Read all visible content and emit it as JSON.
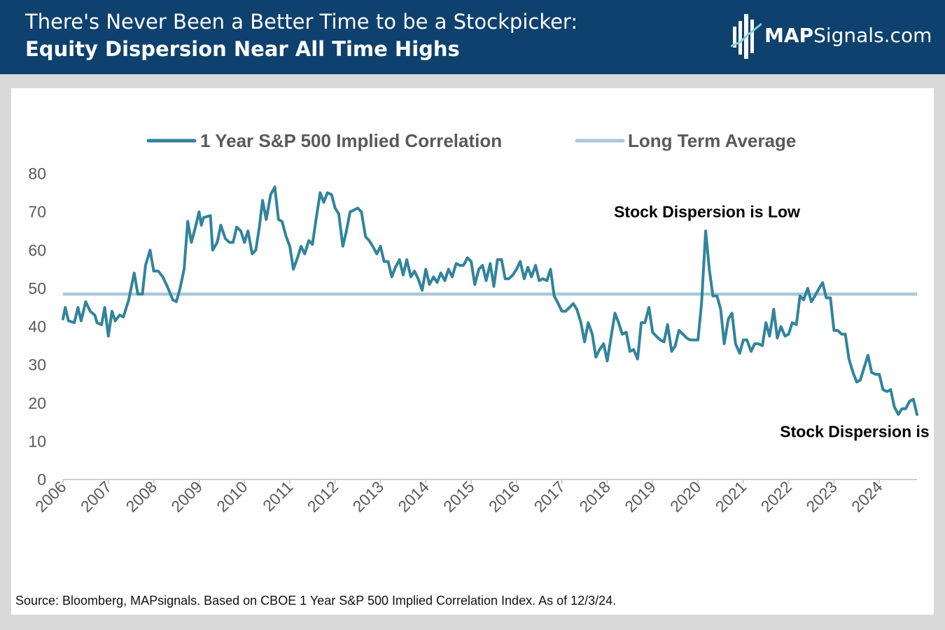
{
  "header": {
    "title_line1": "There's Never Been a Better Time to be a Stockpicker:",
    "title_line2": "Equity Dispersion Near All Time Highs",
    "logo_bold": "MAP",
    "logo_rest": "Signals.com"
  },
  "source": "Source: Bloomberg, MAPsignals. Based on CBOE 1 Year S&P 500 Implied Correlation Index. As of 12/3/24.",
  "colors": {
    "header_bg": "#0e416d",
    "series": "#31849b",
    "average": "#a9c9d6",
    "axis_text": "#595959",
    "annotation": "#000000"
  },
  "chart_data": {
    "type": "line",
    "title": "",
    "xlabel": "",
    "ylabel": "",
    "ylim": [
      0,
      80
    ],
    "yticks": [
      0,
      10,
      20,
      30,
      40,
      50,
      60,
      70,
      80
    ],
    "xlim": [
      2006,
      2024.83
    ],
    "xticks": [
      "2006",
      "2007",
      "2008",
      "2009",
      "2010",
      "2011",
      "2012",
      "2013",
      "2014",
      "2015",
      "2016",
      "2017",
      "2018",
      "2019",
      "2020",
      "2021",
      "2022",
      "2023",
      "2024"
    ],
    "legend": [
      "1 Year S&P 500 Implied Correlation",
      "Long Term Average"
    ],
    "legend_position": "top-center",
    "series": [
      {
        "name": "1 Year S&P 500 Implied Correlation",
        "points": [
          [
            2006.0,
            42
          ],
          [
            2006.05,
            45
          ],
          [
            2006.12,
            41.5
          ],
          [
            2006.25,
            41
          ],
          [
            2006.33,
            45
          ],
          [
            2006.4,
            41.5
          ],
          [
            2006.5,
            46.5
          ],
          [
            2006.6,
            44
          ],
          [
            2006.7,
            43
          ],
          [
            2006.75,
            41
          ],
          [
            2006.85,
            40.5
          ],
          [
            2006.92,
            45
          ],
          [
            2007.0,
            37.5
          ],
          [
            2007.08,
            44
          ],
          [
            2007.15,
            41.5
          ],
          [
            2007.25,
            43
          ],
          [
            2007.33,
            42.5
          ],
          [
            2007.45,
            47
          ],
          [
            2007.57,
            54
          ],
          [
            2007.65,
            48.5
          ],
          [
            2007.75,
            48.5
          ],
          [
            2007.82,
            56
          ],
          [
            2007.92,
            60
          ],
          [
            2008.0,
            54.5
          ],
          [
            2008.1,
            54.5
          ],
          [
            2008.2,
            53
          ],
          [
            2008.3,
            50.5
          ],
          [
            2008.42,
            47
          ],
          [
            2008.5,
            46.5
          ],
          [
            2008.58,
            50
          ],
          [
            2008.67,
            55
          ],
          [
            2008.75,
            67.5
          ],
          [
            2008.83,
            62
          ],
          [
            2008.92,
            66
          ],
          [
            2009.0,
            70
          ],
          [
            2009.05,
            66.5
          ],
          [
            2009.1,
            68.5
          ],
          [
            2009.25,
            69
          ],
          [
            2009.3,
            60
          ],
          [
            2009.4,
            62
          ],
          [
            2009.48,
            66.5
          ],
          [
            2009.58,
            63
          ],
          [
            2009.67,
            62
          ],
          [
            2009.75,
            62
          ],
          [
            2009.83,
            66
          ],
          [
            2009.92,
            65
          ],
          [
            2010.0,
            62
          ],
          [
            2010.08,
            65
          ],
          [
            2010.17,
            59
          ],
          [
            2010.25,
            60
          ],
          [
            2010.33,
            66
          ],
          [
            2010.4,
            73
          ],
          [
            2010.48,
            68
          ],
          [
            2010.58,
            74.5
          ],
          [
            2010.67,
            76.5
          ],
          [
            2010.75,
            68
          ],
          [
            2010.83,
            67.5
          ],
          [
            2010.92,
            63.5
          ],
          [
            2011.0,
            61
          ],
          [
            2011.08,
            55
          ],
          [
            2011.17,
            58
          ],
          [
            2011.25,
            61
          ],
          [
            2011.33,
            59
          ],
          [
            2011.42,
            62.5
          ],
          [
            2011.5,
            61.5
          ],
          [
            2011.58,
            68
          ],
          [
            2011.67,
            75
          ],
          [
            2011.75,
            72.5
          ],
          [
            2011.83,
            75
          ],
          [
            2011.92,
            74.5
          ],
          [
            2012.0,
            71
          ],
          [
            2012.08,
            69.5
          ],
          [
            2012.17,
            61
          ],
          [
            2012.25,
            65
          ],
          [
            2012.33,
            70
          ],
          [
            2012.42,
            70.5
          ],
          [
            2012.5,
            71
          ],
          [
            2012.58,
            70
          ],
          [
            2012.67,
            63.5
          ],
          [
            2012.75,
            62.5
          ],
          [
            2012.83,
            61
          ],
          [
            2012.92,
            59
          ],
          [
            2013.0,
            61
          ],
          [
            2013.08,
            57
          ],
          [
            2013.17,
            57
          ],
          [
            2013.25,
            53
          ],
          [
            2013.33,
            55.5
          ],
          [
            2013.42,
            57.5
          ],
          [
            2013.5,
            53.5
          ],
          [
            2013.58,
            57.5
          ],
          [
            2013.67,
            53
          ],
          [
            2013.75,
            54.5
          ],
          [
            2013.83,
            52.5
          ],
          [
            2013.92,
            49.5
          ],
          [
            2014.0,
            55
          ],
          [
            2014.08,
            51
          ],
          [
            2014.17,
            53
          ],
          [
            2014.25,
            51.5
          ],
          [
            2014.33,
            54
          ],
          [
            2014.42,
            52
          ],
          [
            2014.5,
            55
          ],
          [
            2014.58,
            53
          ],
          [
            2014.67,
            56.5
          ],
          [
            2014.75,
            56
          ],
          [
            2014.83,
            56
          ],
          [
            2014.92,
            58
          ],
          [
            2015.0,
            57
          ],
          [
            2015.08,
            51
          ],
          [
            2015.17,
            55
          ],
          [
            2015.25,
            56
          ],
          [
            2015.33,
            52
          ],
          [
            2015.42,
            56.5
          ],
          [
            2015.5,
            50.5
          ],
          [
            2015.58,
            57.5
          ],
          [
            2015.67,
            57.5
          ],
          [
            2015.75,
            52.5
          ],
          [
            2015.83,
            52.5
          ],
          [
            2015.92,
            53.5
          ],
          [
            2016.0,
            55
          ],
          [
            2016.08,
            57
          ],
          [
            2016.17,
            52.5
          ],
          [
            2016.25,
            55.5
          ],
          [
            2016.33,
            53
          ],
          [
            2016.42,
            56
          ],
          [
            2016.5,
            52
          ],
          [
            2016.58,
            52.5
          ],
          [
            2016.67,
            52
          ],
          [
            2016.75,
            55
          ],
          [
            2016.83,
            48
          ],
          [
            2016.92,
            46
          ],
          [
            2017.0,
            44
          ],
          [
            2017.08,
            44
          ],
          [
            2017.17,
            45
          ],
          [
            2017.25,
            46
          ],
          [
            2017.33,
            44.5
          ],
          [
            2017.42,
            41
          ],
          [
            2017.5,
            36
          ],
          [
            2017.58,
            41
          ],
          [
            2017.67,
            38
          ],
          [
            2017.75,
            32
          ],
          [
            2017.83,
            34
          ],
          [
            2017.92,
            35.5
          ],
          [
            2018.0,
            31
          ],
          [
            2018.08,
            37
          ],
          [
            2018.17,
            43.5
          ],
          [
            2018.25,
            41
          ],
          [
            2018.33,
            38
          ],
          [
            2018.42,
            38.5
          ],
          [
            2018.5,
            33.5
          ],
          [
            2018.58,
            34
          ],
          [
            2018.67,
            31.5
          ],
          [
            2018.75,
            41
          ],
          [
            2018.83,
            41
          ],
          [
            2018.92,
            45
          ],
          [
            2019.0,
            38.5
          ],
          [
            2019.08,
            37.5
          ],
          [
            2019.17,
            36.5
          ],
          [
            2019.25,
            36
          ],
          [
            2019.33,
            40.5
          ],
          [
            2019.42,
            33.5
          ],
          [
            2019.5,
            35
          ],
          [
            2019.58,
            39
          ],
          [
            2019.67,
            38
          ],
          [
            2019.75,
            37
          ],
          [
            2019.83,
            36.5
          ],
          [
            2019.92,
            36.5
          ],
          [
            2020.0,
            36.5
          ],
          [
            2020.08,
            46
          ],
          [
            2020.17,
            65
          ],
          [
            2020.25,
            55
          ],
          [
            2020.33,
            48
          ],
          [
            2020.42,
            48
          ],
          [
            2020.5,
            44.5
          ],
          [
            2020.58,
            35.5
          ],
          [
            2020.67,
            42
          ],
          [
            2020.75,
            43.5
          ],
          [
            2020.83,
            35.5
          ],
          [
            2020.92,
            33
          ],
          [
            2021.0,
            36.5
          ],
          [
            2021.08,
            36.5
          ],
          [
            2021.17,
            33.5
          ],
          [
            2021.25,
            35.5
          ],
          [
            2021.33,
            35.5
          ],
          [
            2021.42,
            35
          ],
          [
            2021.5,
            41
          ],
          [
            2021.58,
            37.5
          ],
          [
            2021.67,
            44.5
          ],
          [
            2021.75,
            37
          ],
          [
            2021.83,
            40
          ],
          [
            2021.92,
            37.5
          ],
          [
            2022.0,
            38
          ],
          [
            2022.08,
            41
          ],
          [
            2022.17,
            40.5
          ],
          [
            2022.25,
            48
          ],
          [
            2022.33,
            47
          ],
          [
            2022.42,
            50
          ],
          [
            2022.5,
            46.5
          ],
          [
            2022.58,
            48
          ],
          [
            2022.67,
            50
          ],
          [
            2022.75,
            51.5
          ],
          [
            2022.83,
            47.5
          ],
          [
            2022.92,
            47.5
          ],
          [
            2023.0,
            39
          ],
          [
            2023.08,
            39
          ],
          [
            2023.17,
            38
          ],
          [
            2023.25,
            38
          ],
          [
            2023.33,
            31.5
          ],
          [
            2023.42,
            28
          ],
          [
            2023.5,
            25.5
          ],
          [
            2023.58,
            26
          ],
          [
            2023.67,
            29.5
          ],
          [
            2023.75,
            32.5
          ],
          [
            2023.83,
            28
          ],
          [
            2023.92,
            27.5
          ],
          [
            2024.0,
            27.5
          ],
          [
            2024.08,
            23.5
          ],
          [
            2024.17,
            23
          ],
          [
            2024.25,
            23.5
          ],
          [
            2024.33,
            19
          ],
          [
            2024.42,
            17
          ],
          [
            2024.5,
            18.5
          ],
          [
            2024.58,
            18.5
          ],
          [
            2024.67,
            20.5
          ],
          [
            2024.75,
            21
          ],
          [
            2024.83,
            17
          ]
        ]
      },
      {
        "name": "Long Term Average",
        "points": [
          [
            2006.0,
            48.5
          ],
          [
            2024.83,
            48.5
          ]
        ]
      }
    ],
    "annotations": [
      {
        "text": "Stock Dispersion is Low",
        "near": [
          2020.2,
          70
        ]
      },
      {
        "text": "Stock Dispersion is High",
        "near": [
          2023.9,
          12.5
        ]
      }
    ]
  }
}
